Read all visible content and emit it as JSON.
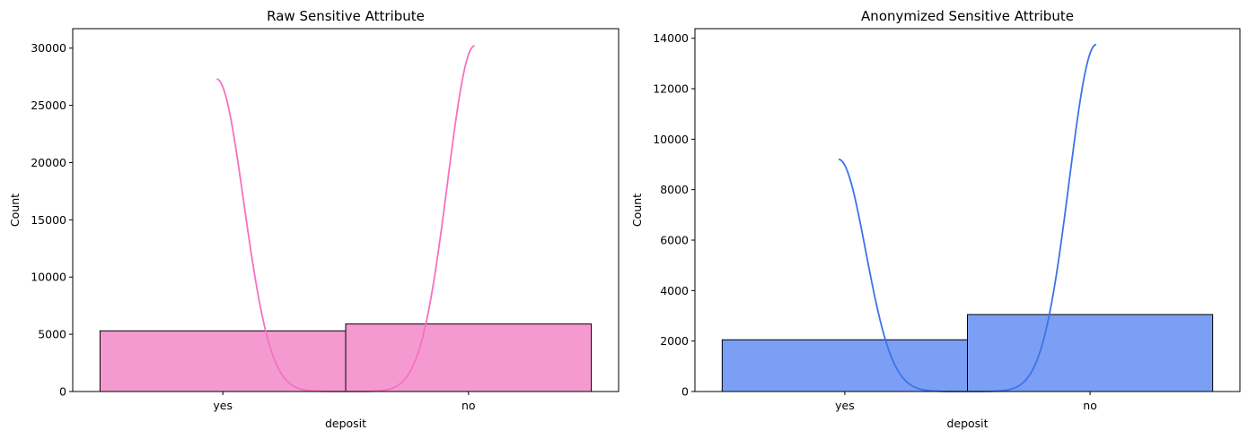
{
  "chart_data": [
    {
      "type": "bar",
      "title": "Raw Sensitive Attribute",
      "xlabel": "deposit",
      "ylabel": "Count",
      "categories": [
        "yes",
        "no"
      ],
      "values": [
        5300,
        5900
      ],
      "ylim": [
        0,
        31700
      ],
      "yticks": [
        0,
        5000,
        10000,
        15000,
        20000,
        25000,
        30000
      ],
      "ytick_labels": [
        "0",
        "5000",
        "10000",
        "15000",
        "20000",
        "25000",
        "30000"
      ],
      "bar_color": "#f59ad0",
      "kde_color": "#f472bf",
      "kde_peaks": [
        27300,
        30200
      ],
      "grid": false
    },
    {
      "type": "bar",
      "title": "Anonymized Sensitive Attribute",
      "xlabel": "deposit",
      "ylabel": "Count",
      "categories": [
        "yes",
        "no"
      ],
      "values": [
        2050,
        3050
      ],
      "ylim": [
        0,
        14380
      ],
      "yticks": [
        0,
        2000,
        4000,
        6000,
        8000,
        10000,
        12000,
        14000
      ],
      "ytick_labels": [
        "0",
        "2000",
        "4000",
        "6000",
        "8000",
        "10000",
        "12000",
        "14000"
      ],
      "bar_color": "#7b9ff5",
      "kde_color": "#3b74e9",
      "kde_peaks": [
        9200,
        13750
      ],
      "grid": false
    }
  ]
}
